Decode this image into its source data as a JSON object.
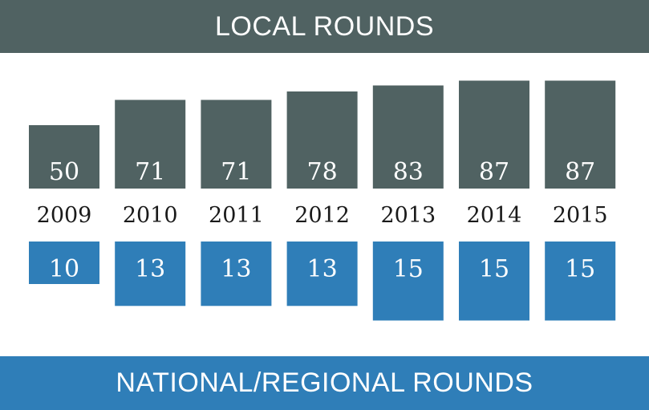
{
  "header": {
    "title": "LOCAL ROUNDS"
  },
  "footer": {
    "title": "NATIONAL/REGIONAL ROUNDS"
  },
  "colors": {
    "local": "#506262",
    "national": "#2f7eb8",
    "year_text": "#1a1a1a"
  },
  "chart_data": {
    "type": "bar",
    "categories": [
      "2009",
      "2010",
      "2011",
      "2012",
      "2013",
      "2014",
      "2015"
    ],
    "series": [
      {
        "name": "LOCAL ROUNDS",
        "values": [
          50,
          71,
          71,
          78,
          83,
          87,
          87
        ]
      },
      {
        "name": "NATIONAL/REGIONAL ROUNDS",
        "values": [
          10,
          13,
          13,
          13,
          15,
          15,
          15
        ]
      }
    ],
    "grid": false,
    "legend": "none"
  }
}
